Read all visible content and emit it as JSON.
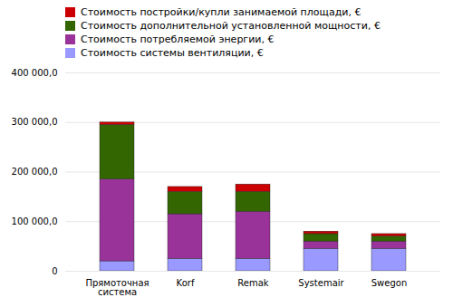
{
  "chart_data": {
    "type": "bar",
    "stacked": true,
    "categories": [
      "Прямоточная система",
      "Korf",
      "Remak",
      "Systemair",
      "Swegon"
    ],
    "series": [
      {
        "name": "Стоимость системы вентиляции, €",
        "color": "#9999ff",
        "values": [
          20000,
          25000,
          25000,
          45000,
          45000
        ]
      },
      {
        "name": "Стоимость потребляемой энергии, €",
        "color": "#993399",
        "values": [
          165000,
          90000,
          95000,
          15000,
          15000
        ]
      },
      {
        "name": "Стоимость дополнительной установленной мощности, €",
        "color": "#336600",
        "values": [
          110000,
          45000,
          40000,
          15000,
          10000
        ]
      },
      {
        "name": "Стоимость постройки/купли занимаемой площади, €",
        "color": "#cc0000",
        "values": [
          5000,
          10000,
          15000,
          5000,
          5000
        ]
      }
    ],
    "ylim": [
      0,
      400000
    ],
    "yticks": [
      0,
      {
        "value": 100000,
        "label": "100 000,0"
      },
      {
        "value": 200000,
        "label": "200 000,0"
      },
      {
        "value": 300000,
        "label": "300 000,0"
      },
      {
        "value": 400000,
        "label": "400 000,0"
      }
    ],
    "grid": true,
    "legend": "upper left"
  }
}
